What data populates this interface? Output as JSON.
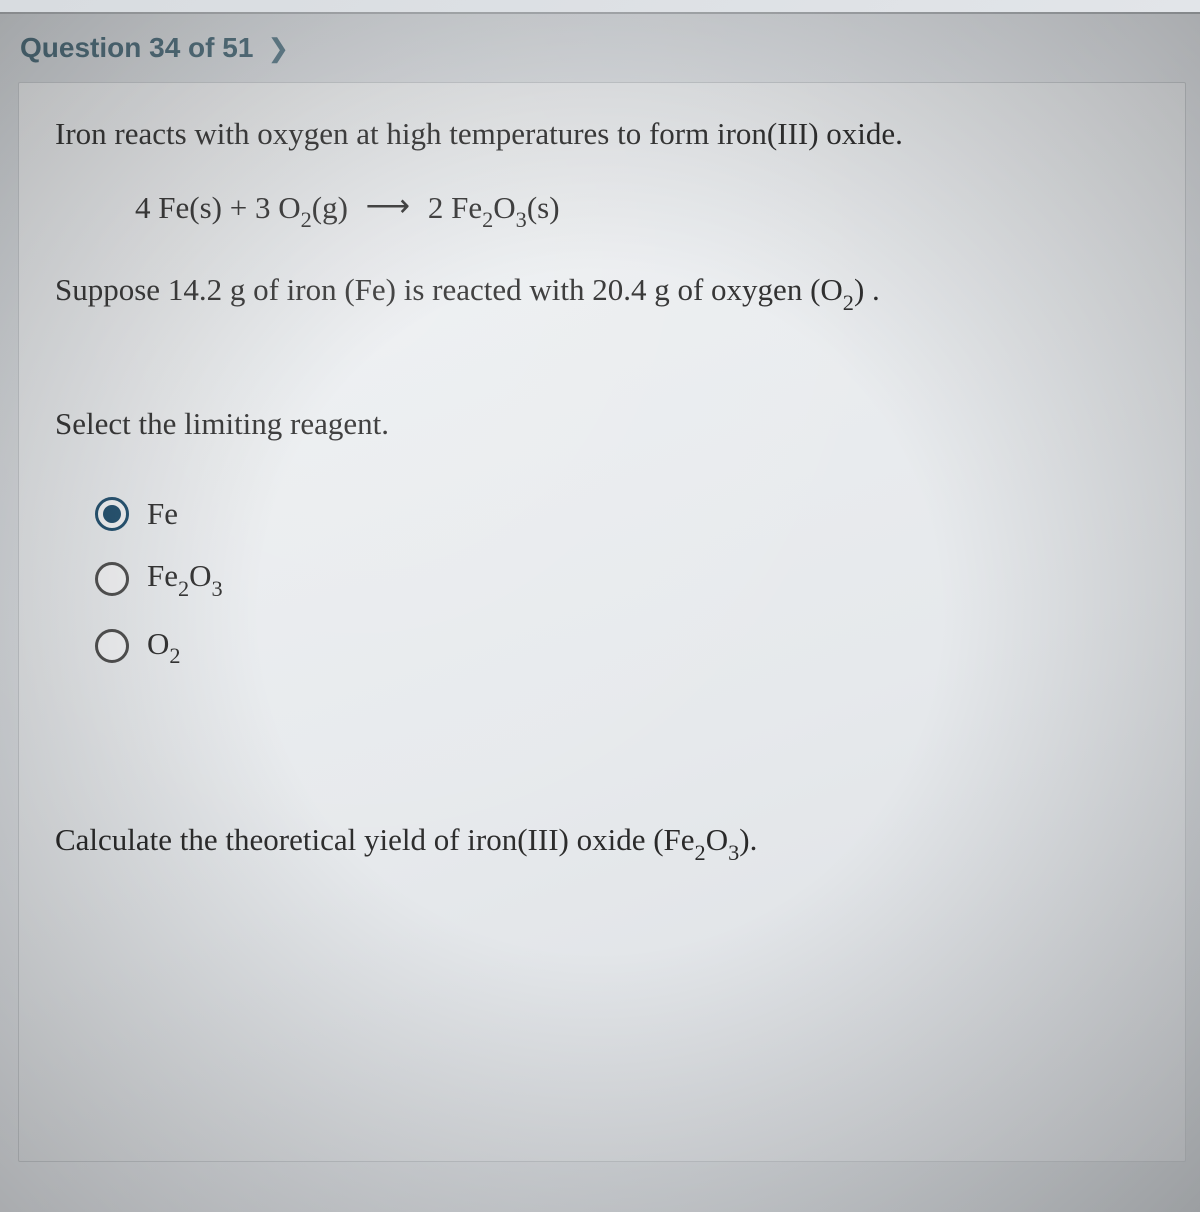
{
  "header": {
    "question_label": "Question 34 of 51",
    "chevron": "❯"
  },
  "problem": {
    "intro": "Iron reacts with oxygen at high temperatures to form iron(III) oxide.",
    "equation": {
      "reactant1_coeff": "4",
      "reactant1": "Fe(s)",
      "plus": "+",
      "reactant2_coeff": "3",
      "reactant2_base": "O",
      "reactant2_sub": "2",
      "reactant2_state": "(g)",
      "arrow": "⟶",
      "product_coeff": "2",
      "product_base1": "Fe",
      "product_sub1": "2",
      "product_base2": "O",
      "product_sub2": "3",
      "product_state": "(s)"
    },
    "condition_prefix": "Suppose 14.2 g of iron (Fe) is reacted with 20.4 g of oxygen ",
    "condition_o2_base": "(O",
    "condition_o2_sub": "2",
    "condition_o2_close": ") .",
    "prompt": "Select the limiting reagent.",
    "calc_prefix": "Calculate the theoretical yield of iron(III) oxide ",
    "calc_formula_open": "(Fe",
    "calc_sub1": "2",
    "calc_mid": "O",
    "calc_sub2": "3",
    "calc_close": ")."
  },
  "options": [
    {
      "label_plain": "Fe",
      "selected": true,
      "has_sub": false
    },
    {
      "label_base1": "Fe",
      "label_sub1": "2",
      "label_base2": "O",
      "label_sub2": "3",
      "selected": false,
      "has_sub": true
    },
    {
      "label_base1": "O",
      "label_sub1": "2",
      "selected": false,
      "has_sub": true
    }
  ],
  "colors": {
    "header_text": "#4a6b7a",
    "body_text": "#2a2a2a",
    "radio_selected": "#1a4a6a",
    "panel_bg": "#eceff2"
  }
}
